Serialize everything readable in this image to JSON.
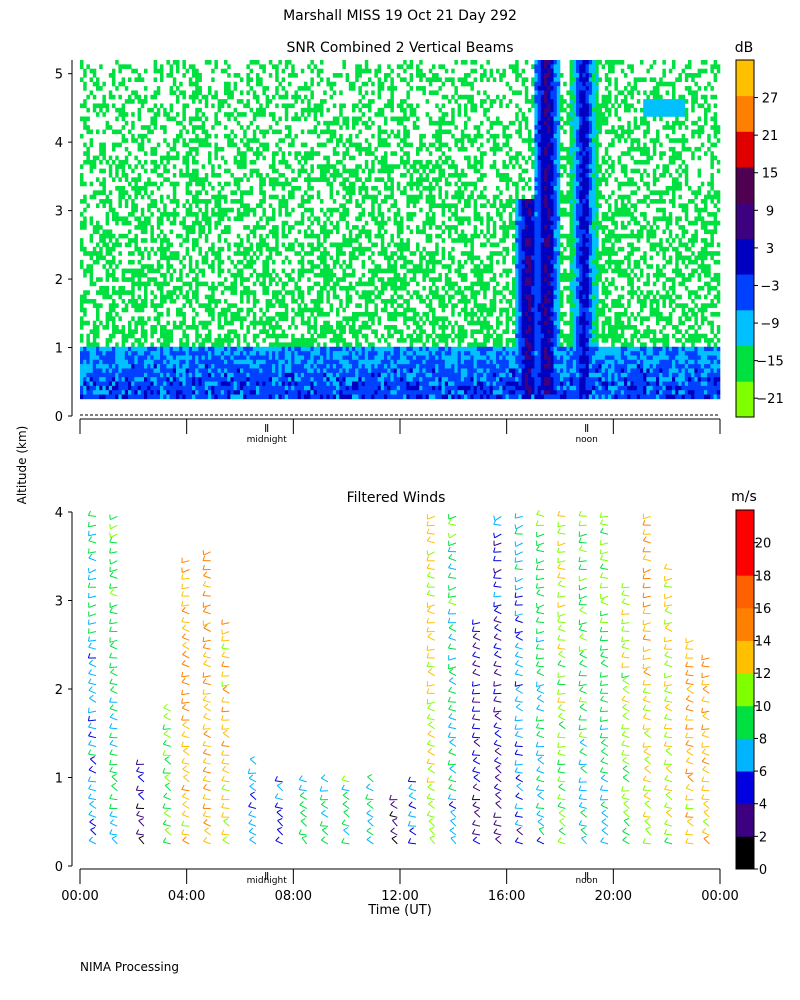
{
  "page": {
    "title": "Marshall MISS   19 Oct 21 Day 292",
    "ylabel": "Altitude (km)",
    "footer": "NIMA Processing"
  },
  "chart_data": [
    {
      "type": "heatmap",
      "title": "SNR Combined 2 Vertical Beams",
      "xlabel": "",
      "ylabel": "Altitude (km)",
      "xlim": [
        0,
        24
      ],
      "ylim": [
        0,
        5.2
      ],
      "yticks": [
        0,
        1,
        2,
        3,
        4,
        5
      ],
      "xticks_hours": [
        0,
        4,
        8,
        12,
        16,
        20,
        24
      ],
      "markers": [
        {
          "label": "midnight",
          "hour": 7
        },
        {
          "label": "noon",
          "hour": 19
        }
      ],
      "colorbar": {
        "unit": "dB",
        "range": [
          -24,
          33
        ],
        "tick_labels": [
          "27",
          "21",
          "15",
          "9",
          "3",
          "−3",
          "−9",
          "−15",
          "−21"
        ],
        "tick_values": [
          27,
          21,
          15,
          9,
          3,
          -3,
          -9,
          -15,
          -21
        ],
        "colors": [
          "#80ff00",
          "#00e040",
          "#00c0ff",
          "#0040ff",
          "#0000c0",
          "#3c0080",
          "#500050",
          "#e00000",
          "#ff8000",
          "#ffc000"
        ]
      },
      "features": [
        {
          "name": "low-level strong return",
          "hours": [
            0,
            24
          ],
          "altitude_km": [
            0.25,
            1.0
          ],
          "level_db": -3
        },
        {
          "name": "background speckle",
          "hours": [
            0,
            24
          ],
          "altitude_km": [
            1.0,
            5.2
          ],
          "level_db": -18
        },
        {
          "name": "convective plume A",
          "hour": 16.8,
          "altitude_km": [
            0.3,
            3.2
          ],
          "level_db": 5
        },
        {
          "name": "convective plume B",
          "hour": 17.5,
          "altitude_km": [
            0.3,
            5.2
          ],
          "level_db": 5
        },
        {
          "name": "rain cell",
          "hour": 18.9,
          "altitude_km": [
            0.3,
            5.2
          ],
          "level_db": 1
        },
        {
          "name": "elevated layer",
          "hours": [
            21.1,
            22.7
          ],
          "altitude_km": [
            4.4,
            4.6
          ],
          "level_db": -10
        }
      ]
    },
    {
      "type": "wind-barbs",
      "title": "Filtered Winds",
      "xlabel": "Time (UT)",
      "ylabel": "Altitude (km)",
      "xlim": [
        0,
        24
      ],
      "ylim": [
        0,
        4
      ],
      "yticks": [
        0,
        1,
        2,
        3,
        4
      ],
      "xtick_labels": [
        "00:00",
        "04:00",
        "08:00",
        "12:00",
        "16:00",
        "20:00",
        "00:00"
      ],
      "markers": [
        {
          "label": "midnight",
          "hour": 7
        },
        {
          "label": "noon",
          "hour": 19
        }
      ],
      "colorbar": {
        "unit": "m/s",
        "range": [
          0,
          22
        ],
        "tick_labels": [
          "20",
          "18",
          "16",
          "14",
          "12",
          "10",
          "8",
          "6",
          "4",
          "2",
          "0"
        ],
        "tick_values": [
          20,
          18,
          16,
          14,
          12,
          10,
          8,
          6,
          4,
          2,
          0
        ],
        "colors": [
          "#000000",
          "#3c0080",
          "#0000e0",
          "#00b4ff",
          "#00e040",
          "#80ff00",
          "#ffc000",
          "#ff8000",
          "#ff6000",
          "#ff0000",
          "#ff0000"
        ]
      },
      "profiles": [
        {
          "hour": 0.6,
          "top_km": 4.0,
          "speed_ms": 6
        },
        {
          "hour": 1.4,
          "top_km": 4.0,
          "speed_ms": 8
        },
        {
          "hour": 2.4,
          "top_km": 1.2,
          "speed_ms": 3
        },
        {
          "hour": 3.4,
          "top_km": 1.8,
          "speed_ms": 9
        },
        {
          "hour": 4.1,
          "top_km": 3.5,
          "speed_ms": 13
        },
        {
          "hour": 4.9,
          "top_km": 3.6,
          "speed_ms": 13
        },
        {
          "hour": 5.6,
          "top_km": 2.8,
          "speed_ms": 12
        },
        {
          "hour": 6.6,
          "top_km": 1.2,
          "speed_ms": 6
        },
        {
          "hour": 7.6,
          "top_km": 1.0,
          "speed_ms": 6
        },
        {
          "hour": 8.5,
          "top_km": 1.0,
          "speed_ms": 7
        },
        {
          "hour": 9.3,
          "top_km": 1.0,
          "speed_ms": 8
        },
        {
          "hour": 10.1,
          "top_km": 1.0,
          "speed_ms": 9
        },
        {
          "hour": 11.0,
          "top_km": 1.0,
          "speed_ms": 8
        },
        {
          "hour": 11.9,
          "top_km": 0.8,
          "speed_ms": 2
        },
        {
          "hour": 12.6,
          "top_km": 1.0,
          "speed_ms": 6
        },
        {
          "hour": 13.3,
          "top_km": 4.0,
          "speed_ms": 11
        },
        {
          "hour": 14.1,
          "top_km": 4.0,
          "speed_ms": 7
        },
        {
          "hour": 15.0,
          "top_km": 2.8,
          "speed_ms": 3
        },
        {
          "hour": 15.8,
          "top_km": 4.0,
          "speed_ms": 3
        },
        {
          "hour": 16.6,
          "top_km": 4.0,
          "speed_ms": 5
        },
        {
          "hour": 17.4,
          "top_km": 4.0,
          "speed_ms": 7
        },
        {
          "hour": 18.2,
          "top_km": 4.0,
          "speed_ms": 10
        },
        {
          "hour": 19.0,
          "top_km": 4.0,
          "speed_ms": 8
        },
        {
          "hour": 19.8,
          "top_km": 4.0,
          "speed_ms": 8
        },
        {
          "hour": 20.6,
          "top_km": 3.2,
          "speed_ms": 10
        },
        {
          "hour": 21.4,
          "top_km": 4.0,
          "speed_ms": 12
        },
        {
          "hour": 22.2,
          "top_km": 3.4,
          "speed_ms": 11
        },
        {
          "hour": 23.0,
          "top_km": 2.6,
          "speed_ms": 13
        },
        {
          "hour": 23.6,
          "top_km": 2.4,
          "speed_ms": 13
        }
      ]
    }
  ]
}
